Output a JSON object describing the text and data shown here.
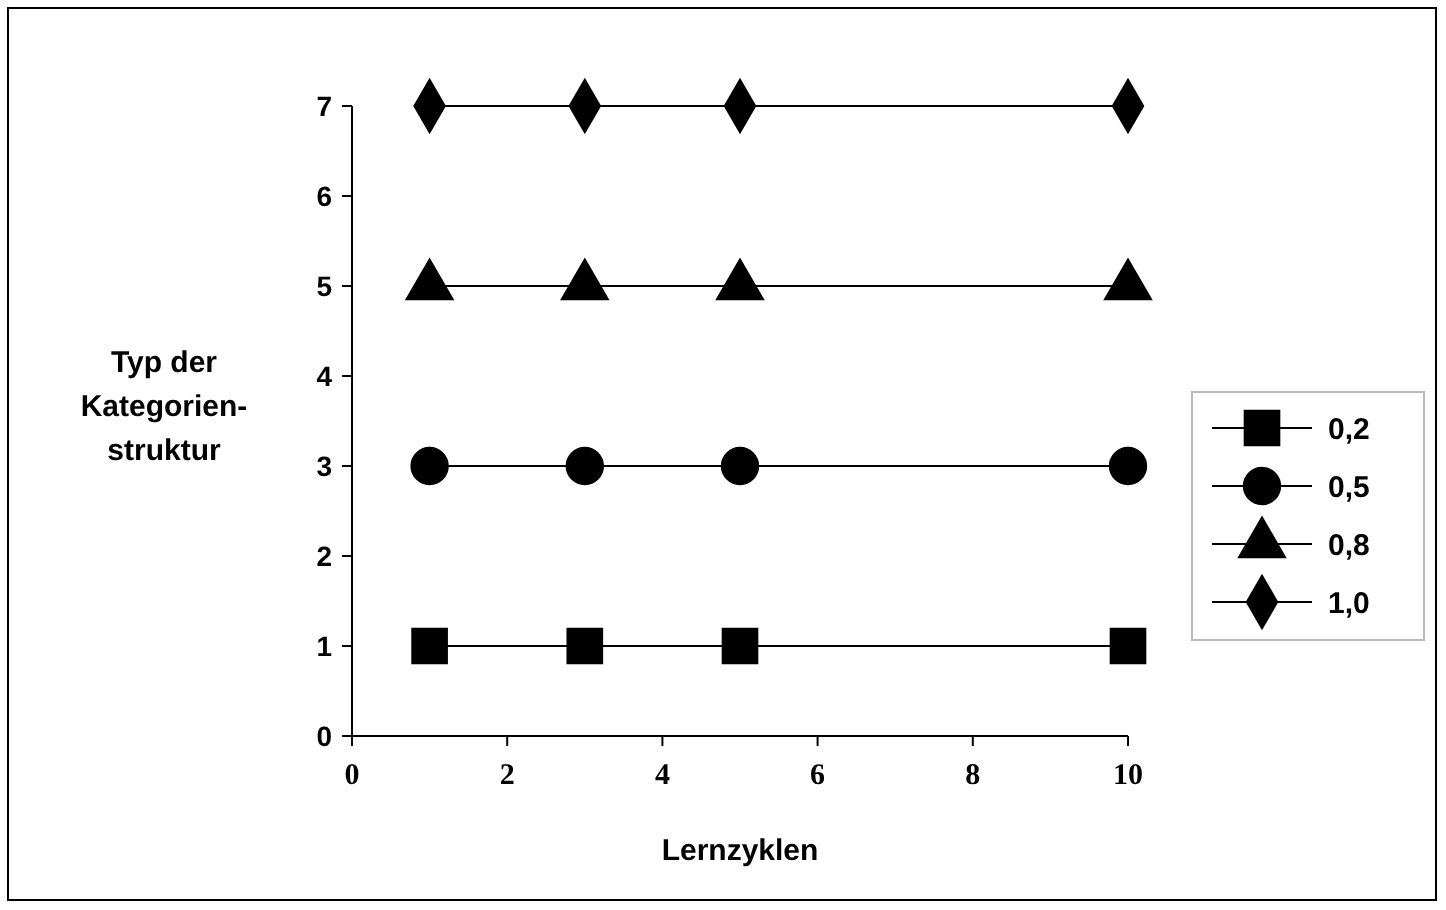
{
  "chart_data": {
    "type": "line",
    "xlabel": "Lernzyklen",
    "ylabel": "Typ der\nKategorien-\nstruktur",
    "x": [
      1,
      3,
      5,
      10
    ],
    "xlim": [
      0,
      10
    ],
    "xticks": [
      0,
      2,
      4,
      6,
      8,
      10
    ],
    "ylim": [
      0,
      7
    ],
    "yticks": [
      0,
      1,
      2,
      3,
      4,
      5,
      6,
      7
    ],
    "grid": false,
    "legend": "right",
    "series": [
      {
        "name": "0,2",
        "color": "#000000",
        "marker": "square",
        "values": [
          1,
          1,
          1,
          1
        ]
      },
      {
        "name": "0,5",
        "color": "#000000",
        "marker": "circle",
        "values": [
          3,
          3,
          3,
          3
        ]
      },
      {
        "name": "0,8",
        "color": "#000000",
        "marker": "triangle",
        "values": [
          5,
          5,
          5,
          5
        ]
      },
      {
        "name": "1,0",
        "color": "#000000",
        "marker": "diamond",
        "values": [
          7,
          7,
          7,
          7
        ]
      }
    ]
  }
}
